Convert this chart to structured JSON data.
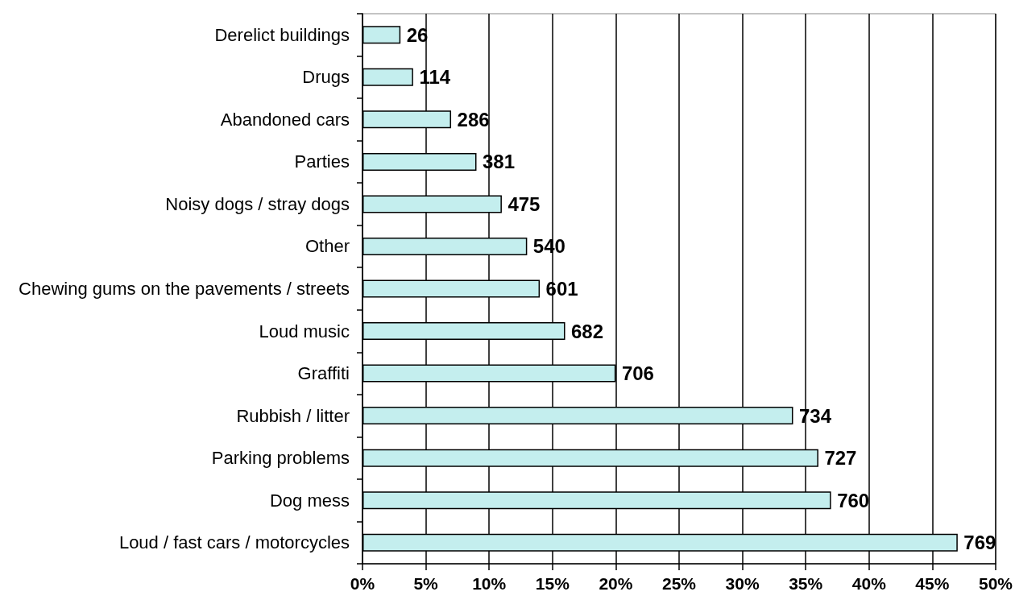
{
  "chart_data": {
    "type": "bar",
    "orientation": "horizontal",
    "categories": [
      "Derelict buildings",
      "Drugs",
      "Abandoned cars",
      "Parties",
      "Noisy dogs / stray dogs",
      "Other",
      "Chewing gums on the pavements / streets",
      "Loud music",
      "Graffiti",
      "Rubbish / litter",
      "Parking problems",
      "Dog mess",
      "Loud / fast cars / motorcycles"
    ],
    "values": [
      3,
      4,
      7,
      9,
      11,
      13,
      14,
      16,
      20,
      34,
      36,
      37,
      47
    ],
    "color": "#c4eeee",
    "xlim": [
      0,
      50
    ],
    "xticks": [
      {
        "value": 0,
        "label": "0%"
      },
      {
        "value": 5,
        "label": "5%"
      },
      {
        "value": 10,
        "label": "10%"
      },
      {
        "value": 15,
        "label": "15%"
      },
      {
        "value": 20,
        "label": "20%"
      },
      {
        "value": 25,
        "label": "25%"
      },
      {
        "value": 30,
        "label": "30%"
      },
      {
        "value": 35,
        "label": "35%"
      },
      {
        "value": 40,
        "label": "40%"
      },
      {
        "value": 45,
        "label": "45%"
      },
      {
        "value": 50,
        "label": "50%"
      }
    ],
    "annotations": [
      {
        "text": "26",
        "x": 3,
        "y": "Derelict buildings"
      },
      {
        "text": "114",
        "x": 4,
        "y": "Drugs"
      },
      {
        "text": "286",
        "x": 7,
        "y": "Abandoned cars"
      },
      {
        "text": "381",
        "x": 9,
        "y": "Parties"
      },
      {
        "text": "475",
        "x": 11,
        "y": "Noisy dogs / stray dogs"
      },
      {
        "text": "540",
        "x": 13,
        "y": "Other"
      },
      {
        "text": "601",
        "x": 14,
        "y": "Chewing gums on the pavements / streets"
      },
      {
        "text": "682",
        "x": 16,
        "y": "Loud music"
      },
      {
        "text": "706",
        "x": 20,
        "y": "Graffiti"
      },
      {
        "text": "734",
        "x": 34,
        "y": "Rubbish / litter"
      },
      {
        "text": "727",
        "x": 36,
        "y": "Parking problems"
      },
      {
        "text": "760",
        "x": 37,
        "y": "Dog mess"
      },
      {
        "text": "769",
        "x": 47,
        "y": "Loud / fast cars / motorcycles"
      }
    ],
    "grid": "x"
  }
}
